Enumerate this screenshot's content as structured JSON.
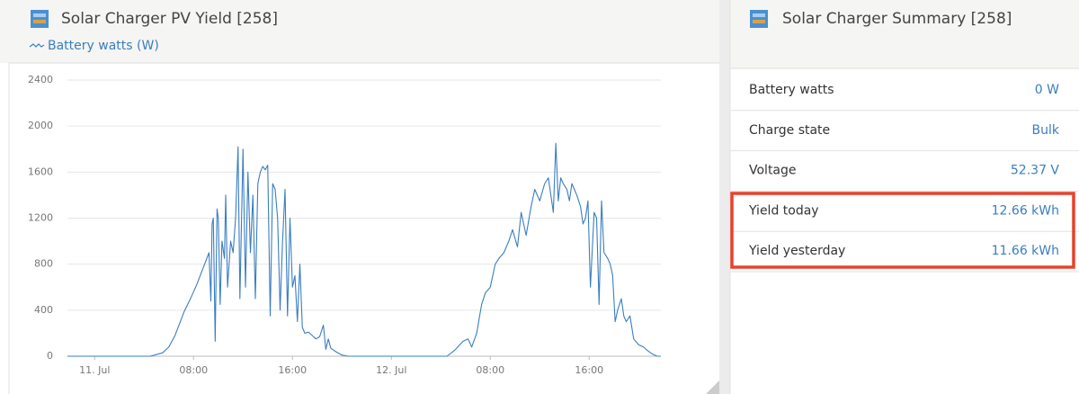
{
  "left_panel": {
    "title": "Solar Charger PV Yield [258]",
    "chart_data": {
      "type": "line",
      "x": [
        -2.2,
        4.5,
        5.5,
        6.0,
        6.5,
        7.0,
        7.25,
        7.75,
        8.25,
        8.75,
        9.25,
        9.4,
        9.5,
        9.6,
        9.75,
        9.9,
        10.0,
        10.15,
        10.3,
        10.5,
        10.6,
        10.75,
        11.0,
        11.2,
        11.4,
        11.6,
        11.75,
        12.0,
        12.2,
        12.4,
        12.6,
        12.8,
        13.0,
        13.2,
        13.4,
        13.6,
        13.8,
        14.0,
        14.2,
        14.4,
        14.6,
        14.8,
        15.0,
        15.2,
        15.4,
        15.6,
        15.8,
        16.0,
        16.2,
        16.4,
        16.6,
        16.8,
        17.0,
        17.3,
        17.6,
        17.9,
        18.2,
        18.5,
        18.7,
        18.9,
        19.1,
        19.5,
        20.0,
        20.5,
        28.5,
        29.1,
        29.8,
        30.2,
        30.5,
        30.9,
        31.3,
        31.6,
        32.0,
        32.4,
        32.7,
        33.1,
        33.5,
        33.8,
        34.2,
        34.5,
        34.9,
        35.3,
        35.6,
        36.0,
        36.4,
        36.7,
        37.1,
        37.3,
        37.5,
        37.7,
        37.9,
        38.2,
        38.4,
        38.6,
        38.8,
        39.0,
        39.3,
        39.5,
        39.7,
        39.9,
        40.1,
        40.4,
        40.6,
        40.8,
        41.0,
        41.2,
        41.5,
        41.7,
        41.9,
        42.1,
        42.3,
        42.6,
        42.8,
        43.0,
        43.3,
        43.6,
        44.0,
        44.4,
        44.7,
        45.1,
        45.5,
        45.8
      ],
      "series": [
        {
          "name": "Battery watts (W)",
          "color": "#3a7ec0",
          "values": [
            0,
            0,
            30,
            80,
            180,
            320,
            390,
            500,
            620,
            760,
            900,
            480,
            1150,
            1200,
            130,
            1280,
            1200,
            450,
            1000,
            850,
            1400,
            600,
            1000,
            900,
            1200,
            1820,
            500,
            1800,
            600,
            1600,
            900,
            1400,
            500,
            1500,
            1600,
            1650,
            1620,
            1660,
            350,
            1500,
            1450,
            1200,
            400,
            1000,
            1450,
            350,
            1200,
            600,
            700,
            300,
            800,
            250,
            200,
            210,
            180,
            150,
            170,
            270,
            60,
            150,
            70,
            40,
            10,
            0,
            0,
            50,
            130,
            150,
            80,
            200,
            450,
            550,
            600,
            800,
            850,
            900,
            1000,
            1100,
            950,
            1250,
            1050,
            1300,
            1450,
            1350,
            1500,
            1550,
            1250,
            1850,
            1350,
            1550,
            1500,
            1450,
            1350,
            1500,
            1450,
            1400,
            1300,
            1150,
            1200,
            1350,
            600,
            1250,
            1200,
            450,
            1350,
            900,
            850,
            800,
            700,
            300,
            400,
            500,
            350,
            300,
            350,
            150,
            100,
            80,
            50,
            20,
            0,
            0
          ]
        }
      ],
      "xlim": [
        -2.2,
        45.8
      ],
      "xticks": [
        {
          "value": 0,
          "label": "11. Jul"
        },
        {
          "value": 8,
          "label": "08:00"
        },
        {
          "value": 16,
          "label": "16:00"
        },
        {
          "value": 24,
          "label": "12. Jul"
        },
        {
          "value": 32,
          "label": "08:00"
        },
        {
          "value": 40,
          "label": "16:00"
        }
      ],
      "ylim": [
        0,
        2400
      ],
      "yticks": [
        0,
        400,
        800,
        1200,
        1600,
        2000,
        2400
      ],
      "grid": true
    }
  },
  "right_panel": {
    "title": "Solar Charger Summary [258]",
    "rows": [
      {
        "label": "Battery watts",
        "value": "0 W"
      },
      {
        "label": "Charge state",
        "value": "Bulk"
      },
      {
        "label": "Voltage",
        "value": "52.37 V"
      },
      {
        "label": "Yield today",
        "value": "12.66 kWh"
      },
      {
        "label": "Yield yesterday",
        "value": "11.66 kWh"
      }
    ]
  }
}
